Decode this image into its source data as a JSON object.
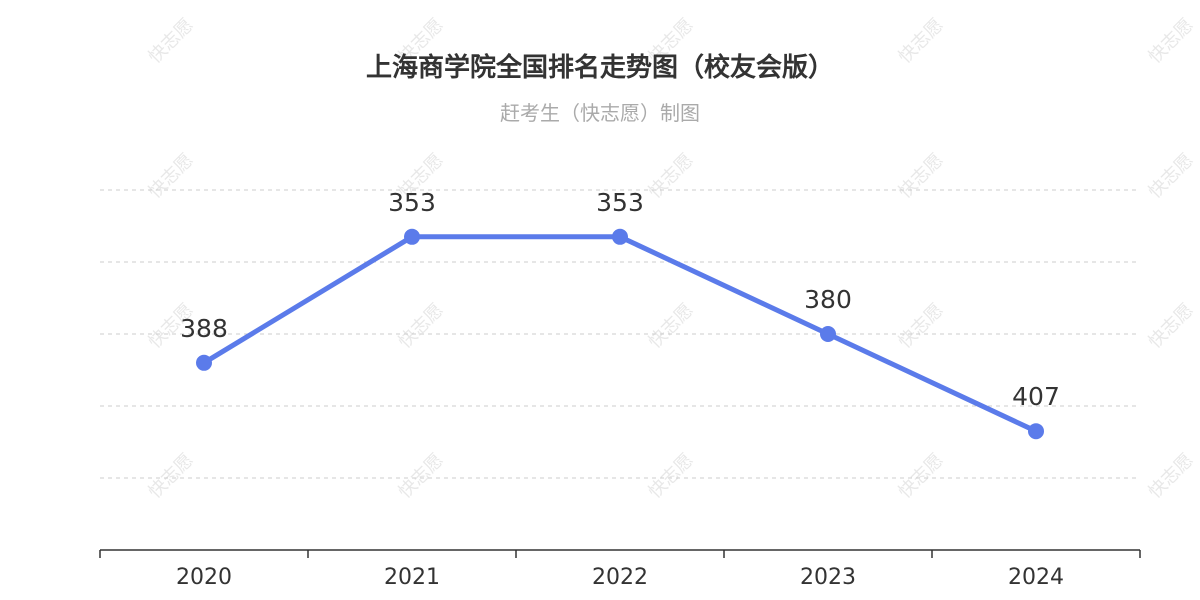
{
  "watermark": "快志愿",
  "chart_data": {
    "type": "line",
    "title": "上海商学院全国排名走势图（校友会版）",
    "subtitle": "赶考生（快志愿）制图",
    "categories": [
      "2020",
      "2021",
      "2022",
      "2023",
      "2024"
    ],
    "series": [
      {
        "values": [
          388,
          353,
          353,
          380,
          407
        ]
      }
    ],
    "y_axis": {
      "inverted": true,
      "range": [
        340,
        440
      ]
    },
    "grid": true,
    "colors": {
      "line": "#5b7bea",
      "grid": "#cccccc",
      "axis": "#333333"
    }
  }
}
